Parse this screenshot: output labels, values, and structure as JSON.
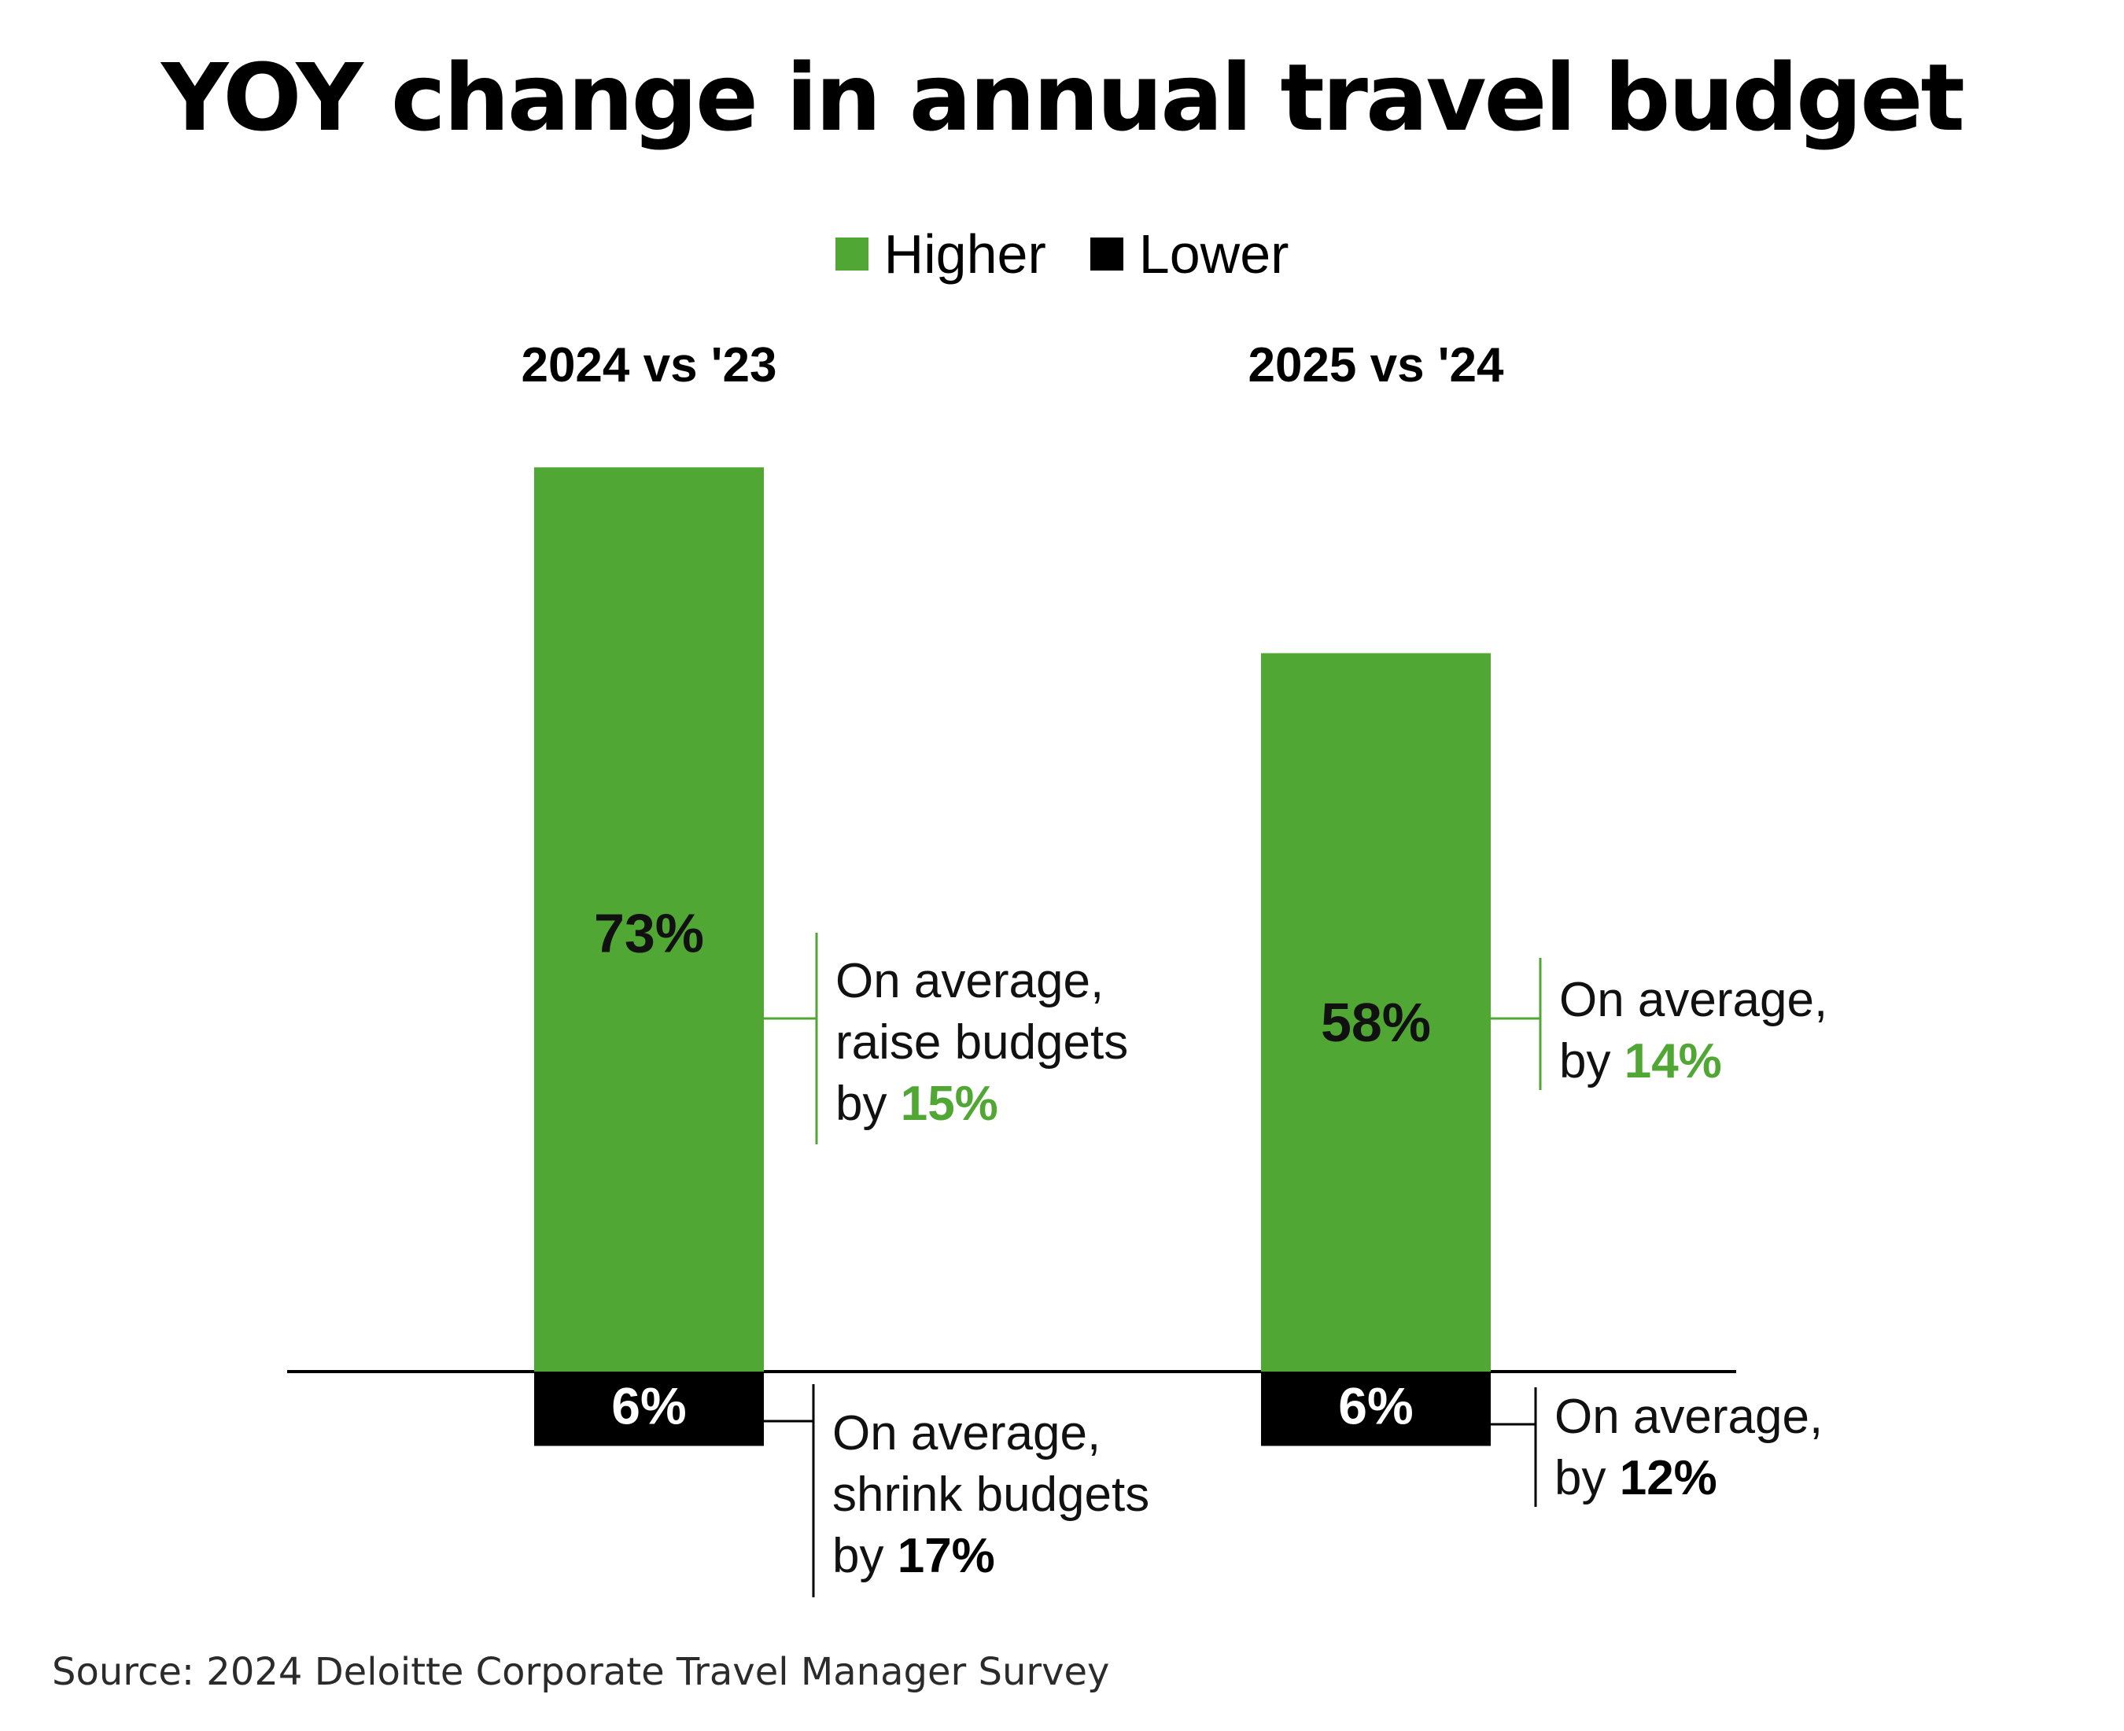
{
  "colors": {
    "higher": "#50a733",
    "lower": "#000000",
    "accent_text": "#50a733"
  },
  "chart_data": {
    "type": "bar",
    "title": "YOY change in annual travel budget",
    "legend": [
      "Higher",
      "Lower"
    ],
    "legend_position": "top-center",
    "categories": [
      "2024 vs '23",
      "2025 vs '24"
    ],
    "series": [
      {
        "name": "Higher",
        "values": [
          73,
          58
        ],
        "labels": [
          "73%",
          "58%"
        ]
      },
      {
        "name": "Lower",
        "values": [
          6,
          6
        ],
        "labels": [
          "6%",
          "6%"
        ]
      }
    ],
    "annotations": [
      {
        "category": "2024 vs '23",
        "series": "Higher",
        "lines": [
          "On average,",
          "raise budgets",
          "by "
        ],
        "value": "15%"
      },
      {
        "category": "2024 vs '23",
        "series": "Lower",
        "lines": [
          "On average,",
          "shrink budgets",
          "by "
        ],
        "value": "17%"
      },
      {
        "category": "2025 vs '24",
        "series": "Higher",
        "lines": [
          "On average,",
          "by "
        ],
        "value": "14%"
      },
      {
        "category": "2025 vs '24",
        "series": "Lower",
        "lines": [
          "On average,",
          "by "
        ],
        "value": "12%"
      }
    ],
    "grid": false
  },
  "source": "Source: 2024 Deloitte Corporate Travel Manager Survey"
}
